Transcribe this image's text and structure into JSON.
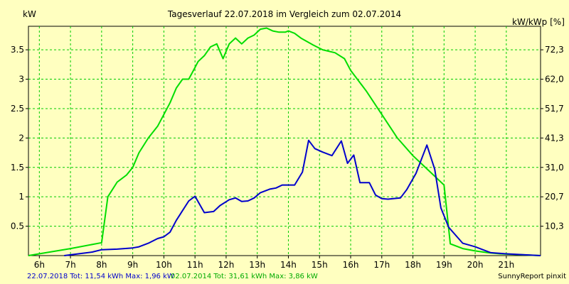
{
  "chart_data": {
    "type": "line",
    "title": "Tagesverlauf 22.07.2018 im Vergleich zum 02.07.2014",
    "ylabel_left": "kW",
    "ylabel_right": "kW/kWp [%]",
    "x_ticks": [
      "6h",
      "7h",
      "8h",
      "9h",
      "10h",
      "11h",
      "12h",
      "13h",
      "14h",
      "15h",
      "16h",
      "17h",
      "18h",
      "19h",
      "20h",
      "21h"
    ],
    "y_left_ticks": [
      "0.5",
      "1",
      "1.5",
      "2",
      "2.5",
      "3",
      "3.5"
    ],
    "y_right_ticks": [
      "10,3",
      "20,7",
      "31,0",
      "41,3",
      "51,7",
      "62,0",
      "72,3"
    ],
    "ylim": [
      0,
      3.9
    ],
    "xlim": [
      5.65,
      22.1
    ],
    "grid": true,
    "series": [
      {
        "name": "22.07.2018",
        "color": "#0000cc",
        "x": [
          6.8,
          7.7,
          8.0,
          8.5,
          9.0,
          9.2,
          9.5,
          9.8,
          10.0,
          10.2,
          10.4,
          10.8,
          11.0,
          11.3,
          11.6,
          11.8,
          12.1,
          12.3,
          12.5,
          12.7,
          12.9,
          13.1,
          13.4,
          13.6,
          13.8,
          14.0,
          14.2,
          14.45,
          14.65,
          14.85,
          15.1,
          15.4,
          15.7,
          15.9,
          16.1,
          16.3,
          16.6,
          16.8,
          17.0,
          17.2,
          17.6,
          17.8,
          18.1,
          18.45,
          18.7,
          18.9,
          19.15,
          19.6,
          20.0,
          20.5,
          21.0,
          22.1
        ],
        "y": [
          0.0,
          0.06,
          0.1,
          0.11,
          0.13,
          0.15,
          0.21,
          0.29,
          0.32,
          0.4,
          0.6,
          0.93,
          1.01,
          0.73,
          0.75,
          0.85,
          0.95,
          0.98,
          0.92,
          0.93,
          0.98,
          1.07,
          1.13,
          1.15,
          1.2,
          1.2,
          1.2,
          1.42,
          1.96,
          1.82,
          1.76,
          1.7,
          1.95,
          1.57,
          1.71,
          1.24,
          1.24,
          1.03,
          0.97,
          0.96,
          0.98,
          1.12,
          1.4,
          1.88,
          1.47,
          0.81,
          0.48,
          0.21,
          0.15,
          0.05,
          0.03,
          0.0
        ]
      },
      {
        "name": "02.07.2014",
        "color": "#00dd00",
        "x": [
          5.65,
          7.0,
          8.0,
          8.2,
          8.5,
          8.8,
          9.0,
          9.2,
          9.5,
          9.8,
          10.0,
          10.2,
          10.4,
          10.6,
          10.8,
          11.0,
          11.1,
          11.3,
          11.5,
          11.7,
          11.9,
          12.1,
          12.3,
          12.5,
          12.7,
          12.9,
          13.1,
          13.3,
          13.5,
          13.7,
          13.9,
          14.0,
          14.2,
          14.4,
          14.8,
          15.1,
          15.5,
          15.8,
          16.0,
          16.5,
          17.0,
          17.5,
          18.0,
          18.5,
          19.0,
          19.2,
          19.6,
          20.0,
          20.4,
          20.8,
          21.2,
          22.1
        ],
        "y": [
          0.0,
          0.12,
          0.22,
          1.0,
          1.25,
          1.37,
          1.5,
          1.75,
          2.0,
          2.2,
          2.4,
          2.6,
          2.85,
          3.0,
          3.0,
          3.2,
          3.3,
          3.4,
          3.55,
          3.6,
          3.35,
          3.6,
          3.7,
          3.6,
          3.7,
          3.75,
          3.85,
          3.87,
          3.82,
          3.8,
          3.8,
          3.82,
          3.78,
          3.7,
          3.58,
          3.5,
          3.45,
          3.35,
          3.15,
          2.8,
          2.4,
          2.0,
          1.7,
          1.45,
          1.2,
          0.2,
          0.12,
          0.08,
          0.05,
          0.03,
          0.02,
          0.0
        ]
      }
    ],
    "footer": {
      "series1": "22.07.2018 Tot: 11,54 kWh Max: 1,96 kW",
      "series2": "02.07.2014 Tot: 31,61 kWh Max: 3,86 kW",
      "credit": "SunnyReport pinxit"
    }
  }
}
